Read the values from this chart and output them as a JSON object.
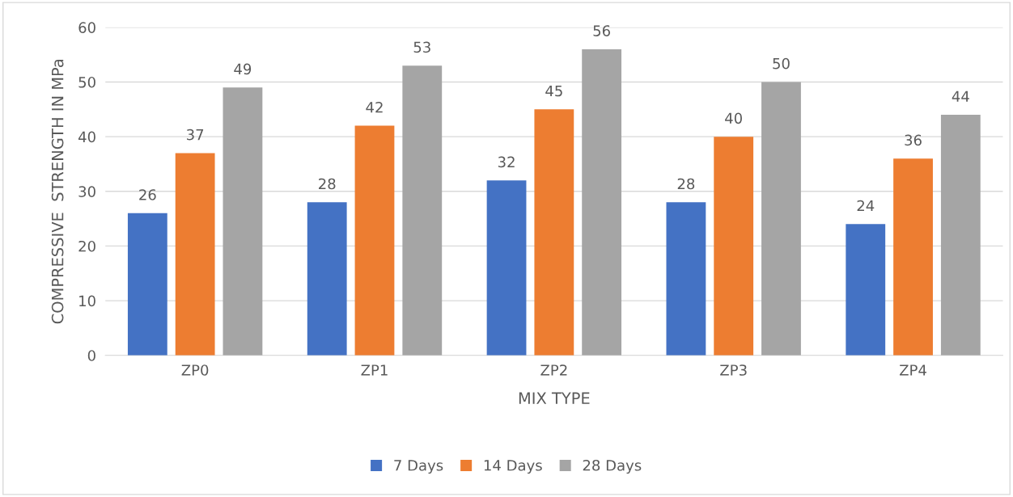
{
  "chart_data": {
    "type": "bar",
    "xlabel": "MIX TYPE",
    "ylabel": "COMPRESSIVE  STRENGTH IN MPa",
    "categories": [
      "ZP0",
      "ZP1",
      "ZP2",
      "ZP3",
      "ZP4"
    ],
    "series": [
      {
        "name": "7 Days",
        "color": "#4472c4",
        "values": [
          26,
          28,
          32,
          28,
          24
        ]
      },
      {
        "name": "14 Days",
        "color": "#ed7d31",
        "values": [
          37,
          42,
          45,
          40,
          36
        ]
      },
      {
        "name": "28 Days",
        "color": "#a5a5a5",
        "values": [
          49,
          53,
          56,
          50,
          44
        ]
      }
    ],
    "ylim": [
      0,
      60
    ],
    "yticks": [
      0,
      10,
      20,
      30,
      40,
      50,
      60
    ],
    "grid": "y",
    "legend": "bottom",
    "data_labels": true
  }
}
